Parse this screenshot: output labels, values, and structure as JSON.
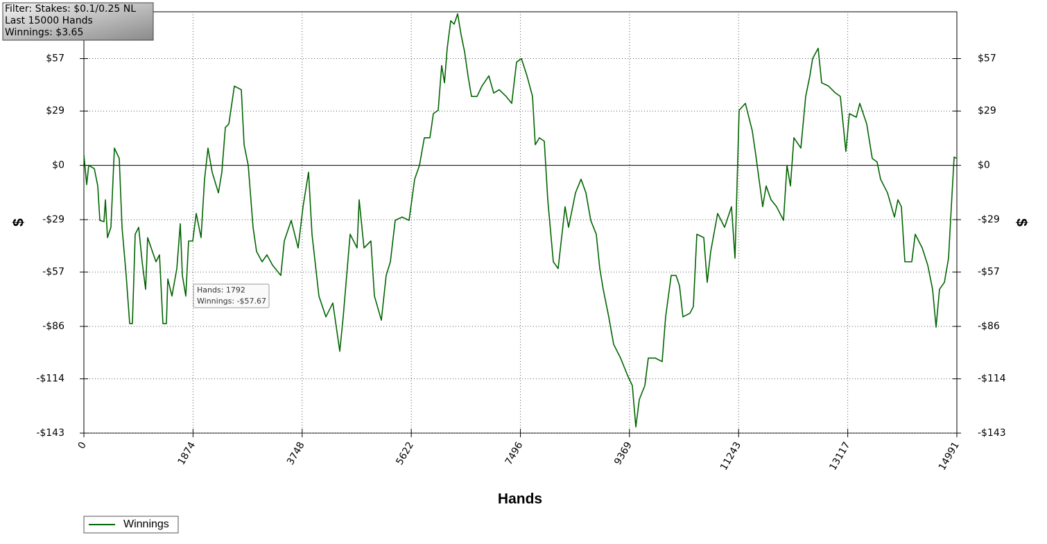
{
  "chart_data": {
    "type": "line",
    "info_box": [
      "Filter: Stakes: $0.1/0.25 NL",
      "Last 15000 Hands",
      "Winnings: $3.65"
    ],
    "tooltip": [
      "Hands: 1792",
      "Winnings: -$57.67"
    ],
    "xlabel": "Hands",
    "ylabel": "$",
    "xlim": [
      0,
      14991
    ],
    "xticks": [
      0,
      1874,
      3748,
      5622,
      7496,
      9369,
      11243,
      13117,
      14991
    ],
    "ylim": [
      -143,
      82
    ],
    "yticks": [
      {
        "value": 57,
        "label": "$57"
      },
      {
        "value": 29,
        "label": "$29"
      },
      {
        "value": 0,
        "label": "$0"
      },
      {
        "value": -29,
        "label": "-$29"
      },
      {
        "value": -57,
        "label": "-$57"
      },
      {
        "value": -86,
        "label": "-$86"
      },
      {
        "value": -114,
        "label": "-$114"
      },
      {
        "value": -143,
        "label": "-$143"
      }
    ],
    "grid": true,
    "legend": "bottom-left",
    "x": [
      0,
      48,
      83,
      179,
      238,
      274,
      345,
      369,
      405,
      464,
      524,
      607,
      655,
      726,
      786,
      833,
      881,
      941,
      1000,
      1060,
      1095,
      1155,
      1238,
      1298,
      1357,
      1417,
      1441,
      1512,
      1596,
      1655,
      1691,
      1750,
      1798,
      1869,
      1929,
      2012,
      2072,
      2131,
      2203,
      2310,
      2369,
      2429,
      2489,
      2584,
      2703,
      2751,
      2822,
      2905,
      2965,
      3060,
      3143,
      3239,
      3382,
      3441,
      3560,
      3679,
      3763,
      3858,
      3917,
      4036,
      4156,
      4275,
      4394,
      4453,
      4572,
      4691,
      4727,
      4810,
      4929,
      4989,
      5108,
      5191,
      5263,
      5346,
      5465,
      5584,
      5680,
      5763,
      5846,
      5942,
      6001,
      6084,
      6144,
      6192,
      6239,
      6299,
      6358,
      6418,
      6477,
      6537,
      6596,
      6656,
      6751,
      6835,
      6954,
      7037,
      7132,
      7251,
      7347,
      7430,
      7513,
      7609,
      7704,
      7751,
      7823,
      7906,
      7966,
      8061,
      8144,
      8263,
      8323,
      8442,
      8537,
      8621,
      8704,
      8799,
      8859,
      8918,
      9013,
      9097,
      9216,
      9335,
      9418,
      9478,
      9538,
      9633,
      9692,
      9811,
      9930,
      9990,
      10085,
      10169,
      10228,
      10287,
      10407,
      10466,
      10526,
      10645,
      10704,
      10764,
      10883,
      11002,
      11121,
      11181,
      11252,
      11359,
      11478,
      11538,
      11657,
      11716,
      11800,
      11895,
      12014,
      12074,
      12133,
      12193,
      12312,
      12395,
      12467,
      12514,
      12609,
      12669,
      12788,
      12907,
      12990,
      13085,
      13145,
      13264,
      13324,
      13443,
      13538,
      13621,
      13681,
      13800,
      13919,
      13979,
      14038,
      14098,
      14217,
      14276,
      14396,
      14491,
      14574,
      14634,
      14693,
      14777,
      14848,
      14896,
      14944,
      14991
    ],
    "series": [
      {
        "name": "Winnings",
        "color": "#006400",
        "values": [
          5.5,
          -10.3,
          0,
          -1.8,
          -11,
          -29.4,
          -30.1,
          -18.4,
          -38.6,
          -33.1,
          9.2,
          3.7,
          -33.1,
          -58.8,
          -84.5,
          -84.5,
          -36.8,
          -33.1,
          -51.5,
          -66.2,
          -38.6,
          -44.1,
          -51.5,
          -47.8,
          -84.5,
          -84.5,
          -60.7,
          -69.8,
          -55.1,
          -31.2,
          -58.8,
          -69.8,
          -40.4,
          -40.4,
          -25.7,
          -38.6,
          -7.4,
          9.2,
          -3.7,
          -14.7,
          -3.7,
          20.2,
          22.1,
          42.3,
          40.4,
          11,
          0,
          -33.1,
          -46,
          -51.5,
          -47.8,
          -53.3,
          -58.8,
          -40.4,
          -29.4,
          -44.1,
          -22.1,
          -3.7,
          -36.8,
          -69.8,
          -80.9,
          -73.5,
          -99.3,
          -80.9,
          -36.8,
          -44.1,
          -18.4,
          -44.1,
          -40.4,
          -69.8,
          -82.7,
          -58.8,
          -51.5,
          -29.4,
          -27.6,
          -29.4,
          -7.4,
          0,
          14.7,
          14.7,
          27.6,
          29.4,
          53.3,
          44.1,
          62.5,
          77.2,
          75.4,
          80.9,
          69.8,
          60.7,
          47.8,
          36.8,
          36.8,
          42.3,
          47.8,
          38.6,
          40.4,
          36.8,
          33.1,
          55.1,
          57,
          47.8,
          36.8,
          11,
          14.7,
          12.9,
          -18.4,
          -51.5,
          -55.1,
          -22.1,
          -33.1,
          -14.7,
          -7.4,
          -14.7,
          -29.4,
          -36.8,
          -55.1,
          -66.2,
          -80.9,
          -95.6,
          -102.9,
          -112.1,
          -117.6,
          -139.7,
          -125,
          -117.6,
          -102.9,
          -102.9,
          -104.8,
          -80.9,
          -58.8,
          -58.8,
          -64.3,
          -80.9,
          -79,
          -75.4,
          -36.8,
          -38.6,
          -62.5,
          -46,
          -25.7,
          -33.1,
          -22.1,
          -49.6,
          29.4,
          33.1,
          18.4,
          5.5,
          -22.1,
          -11,
          -18.4,
          -22.1,
          -29.4,
          0,
          -11,
          14.7,
          9.2,
          36.8,
          47.8,
          57,
          62.5,
          44.1,
          42.3,
          38.6,
          36.8,
          7.4,
          27.6,
          25.7,
          33.1,
          22.1,
          3.7,
          1.8,
          -7.4,
          -14.7,
          -27.6,
          -18.4,
          -22.1,
          -51.5,
          -51.5,
          -36.8,
          -44.1,
          -53.3,
          -66.2,
          -86.4,
          -66.2,
          -62.5,
          -49.6,
          -22.1,
          4.4,
          3.65
        ]
      }
    ]
  }
}
